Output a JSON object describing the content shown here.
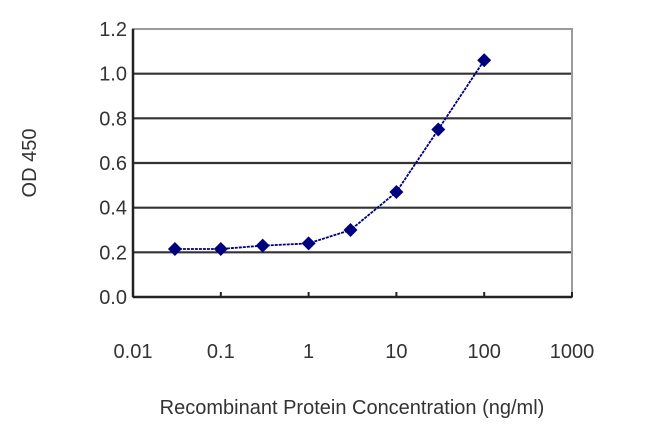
{
  "chart_data": {
    "type": "line",
    "title": "",
    "xlabel": "Recombinant Protein Concentration (ng/ml)",
    "ylabel": "OD 450",
    "xscale": "log",
    "xlim": [
      0.01,
      1000
    ],
    "ylim": [
      0.0,
      1.2
    ],
    "x_ticks": [
      "0.01",
      "0.1",
      "1",
      "10",
      "100",
      "1000"
    ],
    "y_ticks": [
      "0.0",
      "0.2",
      "0.4",
      "0.6",
      "0.8",
      "1.0",
      "1.2"
    ],
    "grid": {
      "horizontal": true,
      "vertical": false
    },
    "legend": null,
    "series": [
      {
        "name": "OD 450",
        "color": "#00007f",
        "marker": "diamond",
        "x": [
          0.03,
          0.1,
          0.3,
          1,
          3,
          10,
          30,
          100
        ],
        "values": [
          0.215,
          0.215,
          0.23,
          0.24,
          0.3,
          0.47,
          0.75,
          1.06
        ]
      }
    ]
  }
}
